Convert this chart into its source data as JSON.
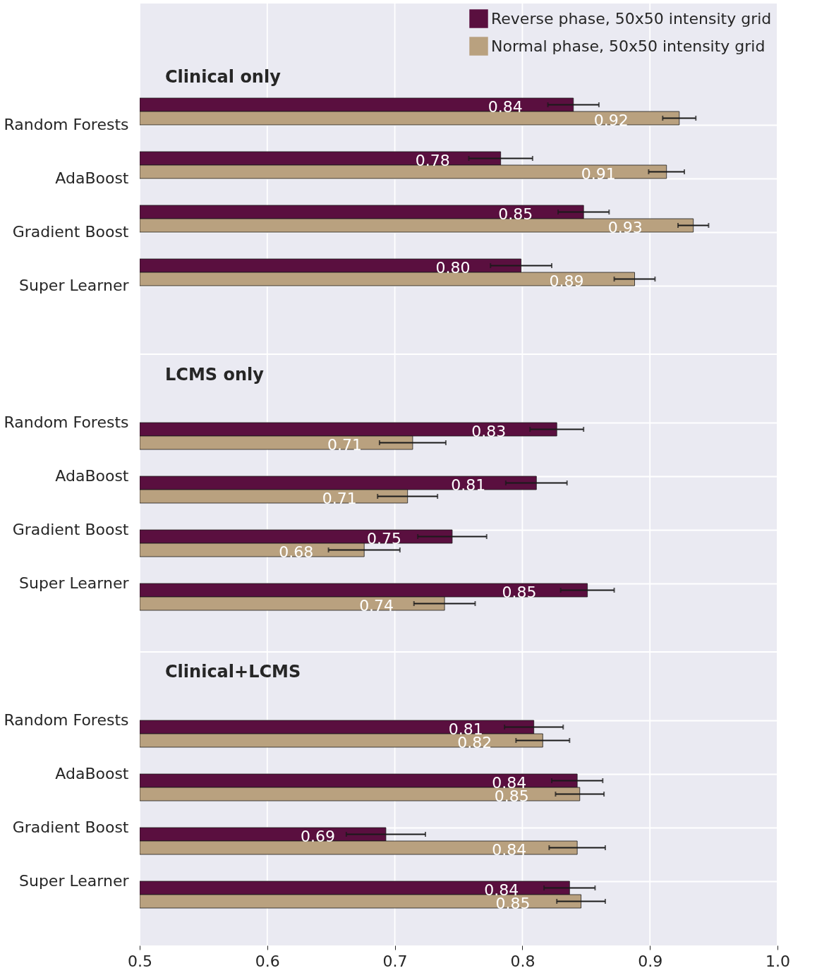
{
  "chart_data": [
    {
      "type": "bar",
      "orientation": "horizontal",
      "title": "Clinical only",
      "categories": [
        "Random Forests",
        "AdaBoost",
        "Gradient Boost",
        "Super Learner"
      ],
      "series": [
        {
          "name": "Reverse phase, 50x50 intensity grid",
          "color": "#5a0f3f",
          "values": [
            0.84,
            0.783,
            0.848,
            0.799
          ],
          "errors": [
            0.02,
            0.025,
            0.02,
            0.024
          ],
          "value_labels": [
            "0.84",
            "0.78",
            "0.85",
            "0.80"
          ]
        },
        {
          "name": "Normal phase, 50x50 intensity grid",
          "color": "#b9a17f",
          "values": [
            0.923,
            0.913,
            0.934,
            0.888
          ],
          "errors": [
            0.013,
            0.014,
            0.012,
            0.016
          ],
          "value_labels": [
            "0.92",
            "0.91",
            "0.93",
            "0.89"
          ]
        }
      ],
      "xlim": [
        0.5,
        1.0
      ],
      "xticks": [
        0.5,
        0.6,
        0.7,
        0.8,
        0.9,
        1.0
      ],
      "grid": true,
      "legend": "top right",
      "tick_labels": "y"
    },
    {
      "type": "bar",
      "orientation": "horizontal",
      "title": "LCMS only",
      "categories": [
        "Random Forests",
        "AdaBoost",
        "Gradient Boost",
        "Super Learner"
      ],
      "series": [
        {
          "color": "#5a0f3f",
          "values": [
            0.827,
            0.811,
            0.745,
            0.851
          ],
          "errors": [
            0.021,
            0.024,
            0.027,
            0.021
          ],
          "value_labels": [
            "0.83",
            "0.81",
            "0.75",
            "0.85"
          ]
        },
        {
          "color": "#b9a17f",
          "values": [
            0.714,
            0.71,
            0.676,
            0.739
          ],
          "errors": [
            0.026,
            0.0235,
            0.028,
            0.024
          ],
          "value_labels": [
            "0.71",
            "0.71",
            "0.68",
            "0.74"
          ]
        }
      ],
      "xlim": [
        0.5,
        1.0
      ],
      "xticks": [
        0.5,
        0.6,
        0.7,
        0.8,
        0.9,
        1.0
      ],
      "grid": true,
      "tick_labels": "y"
    },
    {
      "type": "bar",
      "orientation": "horizontal",
      "title": "Clinical+LCMS",
      "categories": [
        "Random Forests",
        "AdaBoost",
        "Gradient Boost",
        "Super Learner"
      ],
      "series": [
        {
          "color": "#5a0f3f",
          "values": [
            0.809,
            0.843,
            0.693,
            0.837
          ],
          "errors": [
            0.023,
            0.02,
            0.031,
            0.02
          ],
          "value_labels": [
            "0.81",
            "0.84",
            "0.69",
            "0.84"
          ]
        },
        {
          "color": "#b9a17f",
          "values": [
            0.816,
            0.845,
            0.843,
            0.846
          ],
          "errors": [
            0.021,
            0.019,
            0.022,
            0.019
          ],
          "value_labels": [
            "0.82",
            "0.85",
            "0.84",
            "0.85"
          ]
        }
      ],
      "xlim": [
        0.5,
        1.0
      ],
      "xticks": [
        {
          "value": 0.5,
          "label": "0.5"
        },
        {
          "value": 0.6,
          "label": "0.6"
        },
        {
          "value": 0.7,
          "label": "0.7"
        },
        {
          "value": 0.8,
          "label": "0.8"
        },
        {
          "value": 0.9,
          "label": "0.9"
        },
        {
          "value": 1.0,
          "label": "1.0"
        }
      ],
      "grid": true
    }
  ]
}
